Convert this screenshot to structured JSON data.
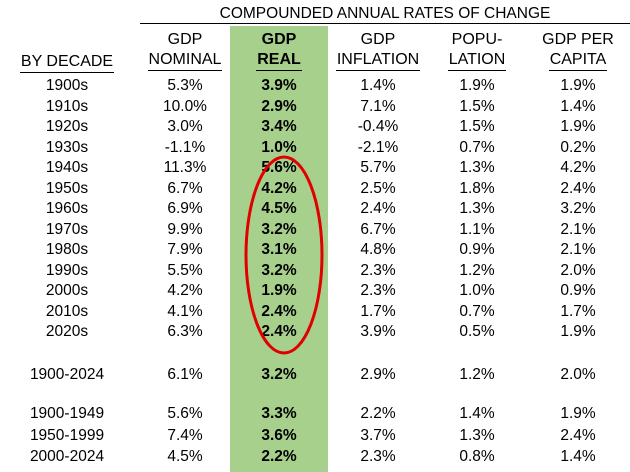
{
  "super_header": "COMPOUNDED ANNUAL RATES OF CHANGE",
  "columns": {
    "decade": "BY DECADE",
    "nominal": [
      "GDP",
      "NOMINAL"
    ],
    "real": [
      "GDP",
      "REAL"
    ],
    "inflation": [
      "GDP",
      "INFLATION"
    ],
    "population": [
      "POPU-",
      "LATION"
    ],
    "per_capita": [
      "GDP PER",
      "CAPITA"
    ]
  },
  "rows": [
    {
      "label": "1900s",
      "nominal": "5.3%",
      "real": "3.9%",
      "inflation": "1.4%",
      "population": "1.9%",
      "per_capita": "1.9%"
    },
    {
      "label": "1910s",
      "nominal": "10.0%",
      "real": "2.9%",
      "inflation": "7.1%",
      "population": "1.5%",
      "per_capita": "1.4%"
    },
    {
      "label": "1920s",
      "nominal": "3.0%",
      "real": "3.4%",
      "inflation": "-0.4%",
      "population": "1.5%",
      "per_capita": "1.9%"
    },
    {
      "label": "1930s",
      "nominal": "-1.1%",
      "real": "1.0%",
      "inflation": "-2.1%",
      "population": "0.7%",
      "per_capita": "0.2%"
    },
    {
      "label": "1940s",
      "nominal": "11.3%",
      "real": "5.6%",
      "inflation": "5.7%",
      "population": "1.3%",
      "per_capita": "4.2%"
    },
    {
      "label": "1950s",
      "nominal": "6.7%",
      "real": "4.2%",
      "inflation": "2.5%",
      "population": "1.8%",
      "per_capita": "2.4%"
    },
    {
      "label": "1960s",
      "nominal": "6.9%",
      "real": "4.5%",
      "inflation": "2.4%",
      "population": "1.3%",
      "per_capita": "3.2%"
    },
    {
      "label": "1970s",
      "nominal": "9.9%",
      "real": "3.2%",
      "inflation": "6.7%",
      "population": "1.1%",
      "per_capita": "2.1%"
    },
    {
      "label": "1980s",
      "nominal": "7.9%",
      "real": "3.1%",
      "inflation": "4.8%",
      "population": "0.9%",
      "per_capita": "2.1%"
    },
    {
      "label": "1990s",
      "nominal": "5.5%",
      "real": "3.2%",
      "inflation": "2.3%",
      "population": "1.2%",
      "per_capita": "2.0%"
    },
    {
      "label": "2000s",
      "nominal": "4.2%",
      "real": "1.9%",
      "inflation": "2.3%",
      "population": "1.0%",
      "per_capita": "0.9%"
    },
    {
      "label": "2010s",
      "nominal": "4.1%",
      "real": "2.4%",
      "inflation": "1.7%",
      "population": "0.7%",
      "per_capita": "1.7%"
    },
    {
      "label": "2020s",
      "nominal": "6.3%",
      "real": "2.4%",
      "inflation": "3.9%",
      "population": "0.5%",
      "per_capita": "1.9%"
    }
  ],
  "total_rows": [
    {
      "label": "1900-2024",
      "nominal": "6.1%",
      "real": "3.2%",
      "inflation": "2.9%",
      "population": "1.2%",
      "per_capita": "2.0%"
    }
  ],
  "period_rows": [
    {
      "label": "1900-1949",
      "nominal": "5.6%",
      "real": "3.3%",
      "inflation": "2.2%",
      "population": "1.4%",
      "per_capita": "1.9%"
    },
    {
      "label": "1950-1999",
      "nominal": "7.4%",
      "real": "3.6%",
      "inflation": "3.7%",
      "population": "1.3%",
      "per_capita": "2.4%"
    },
    {
      "label": "2000-2024",
      "nominal": "4.5%",
      "real": "2.2%",
      "inflation": "2.3%",
      "population": "0.8%",
      "per_capita": "1.4%"
    }
  ],
  "colors": {
    "highlight": "#a8d08d",
    "oval": "#e00000"
  }
}
